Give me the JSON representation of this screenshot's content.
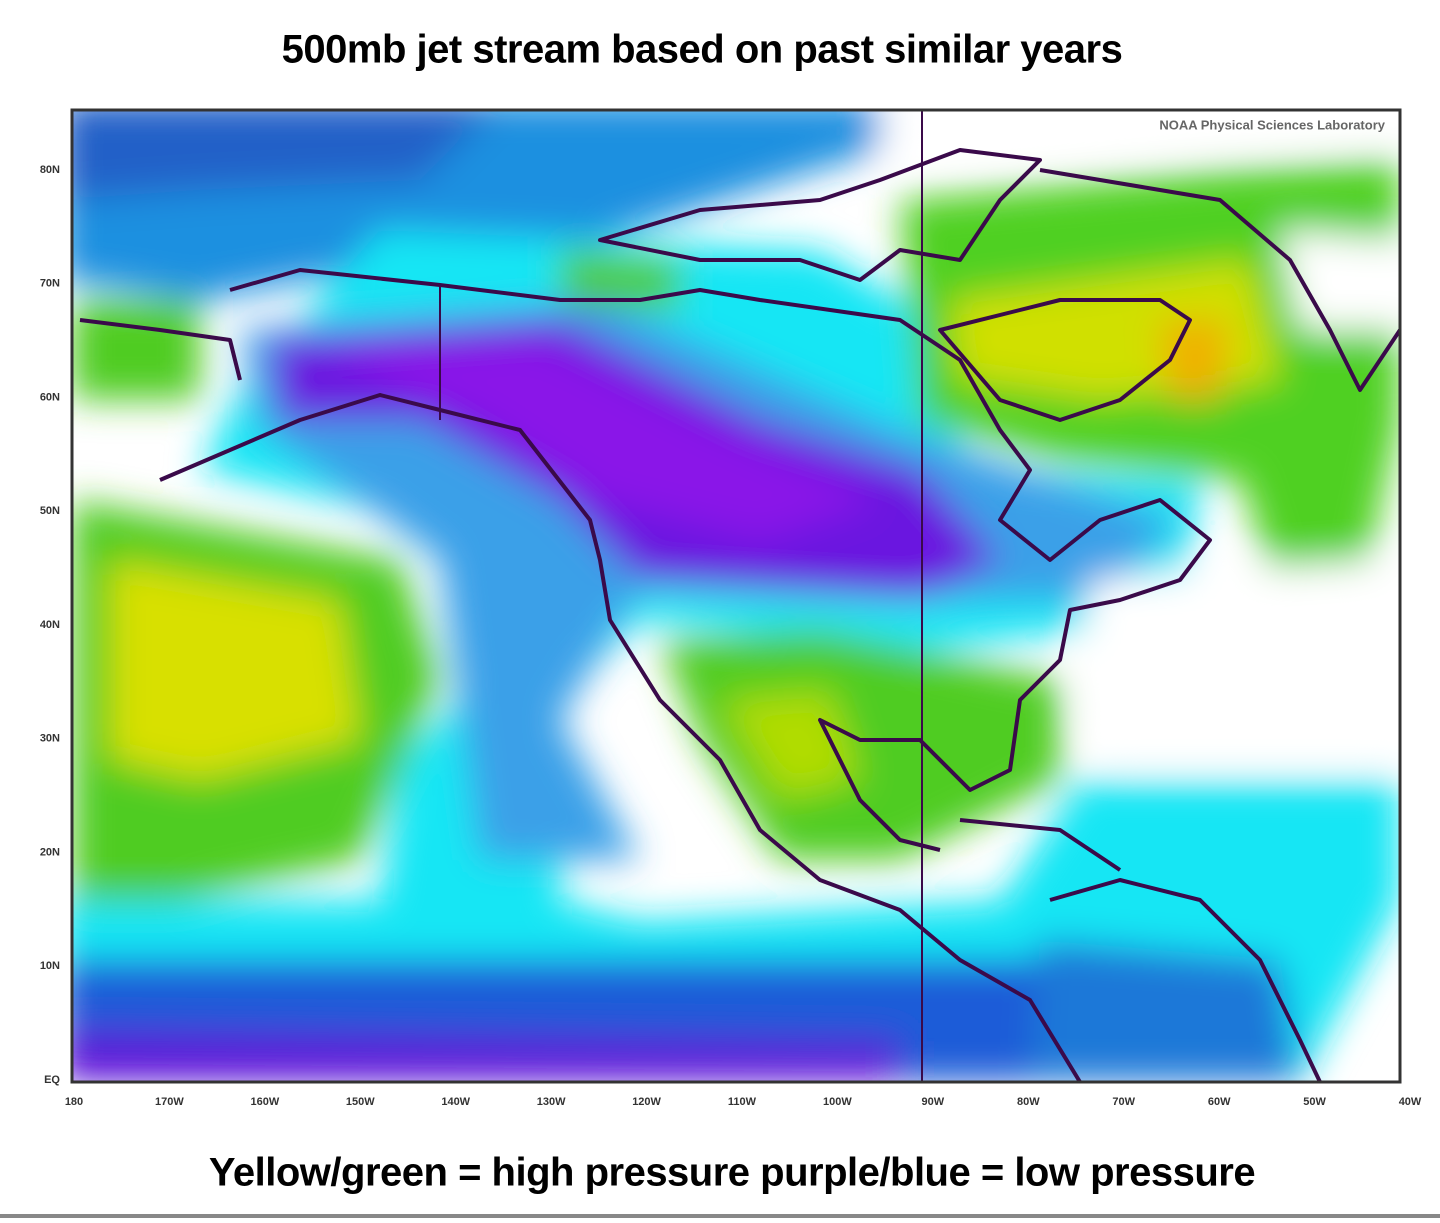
{
  "title": "500mb jet stream based on past similar years",
  "map": {
    "credit": "NOAA Physical Sciences Laboratory",
    "lat_labels": [
      "80N",
      "70N",
      "60N",
      "50N",
      "40N",
      "30N",
      "20N",
      "10N",
      "EQ"
    ],
    "lon_labels": [
      "180",
      "170W",
      "160W",
      "150W",
      "140W",
      "130W",
      "120W",
      "110W",
      "100W",
      "90W",
      "80W",
      "70W",
      "60W",
      "50W",
      "40W"
    ]
  },
  "caption": "Yellow/green = high pressure purple/blue = low pressure"
}
